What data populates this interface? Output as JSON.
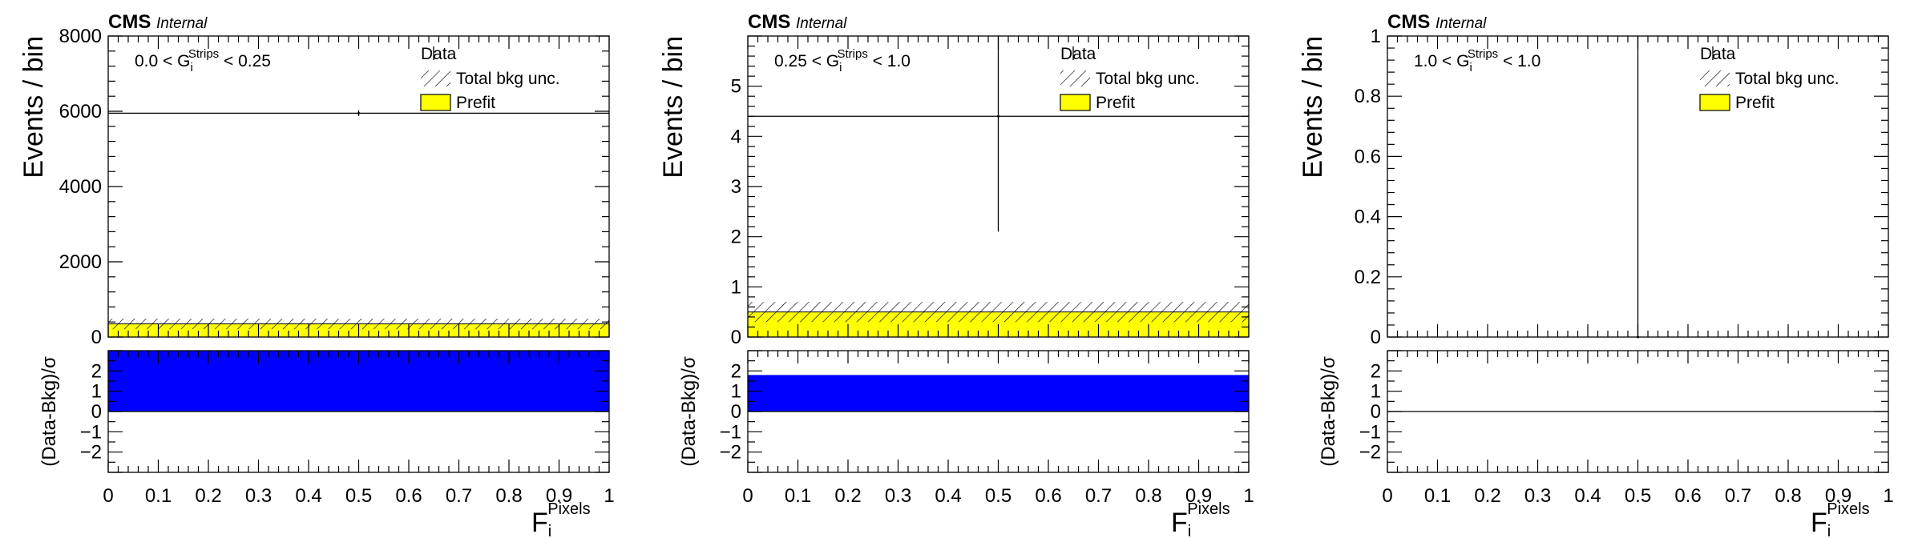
{
  "figure": {
    "experiment": "CMS",
    "status": "Internal",
    "legend": {
      "data": "Data",
      "unc": "Total bkg unc.",
      "prefit": "Prefit"
    },
    "ylabel_top": "Events / bin",
    "ylabel_ratio": "(Data-Bkg)/σ",
    "xlabel_main": "F",
    "xlabel_sub": "i",
    "xlabel_sup": "Pixels"
  },
  "colors": {
    "prefit": "#ffff00",
    "pull": "#0000ff",
    "line": "#000000",
    "frame": "#000000"
  },
  "chart_data": [
    {
      "type": "bar",
      "region_pre": "0.0 < G",
      "region_sub": "i",
      "region_sup": "Strips",
      "region_post": " < 0.25",
      "x_range": [
        0,
        1
      ],
      "ylim": [
        0,
        8000
      ],
      "yticks": [
        "0",
        "2000",
        "4000",
        "6000",
        "8000"
      ],
      "ytick_values": [
        0,
        2000,
        4000,
        6000,
        8000
      ],
      "xticks": [
        "0",
        "0.1",
        "0.2",
        "0.3",
        "0.4",
        "0.5",
        "0.6",
        "0.7",
        "0.8",
        "0.9",
        "1"
      ],
      "bins": [
        [
          0,
          1
        ]
      ],
      "prefit": [
        350
      ],
      "unc_band": [
        [
          210,
          490
        ]
      ],
      "data_x": [
        0.5
      ],
      "data_y": [
        5950
      ],
      "data_err": [
        77
      ],
      "data_xerr": [
        0.5
      ],
      "pull_ylim": [
        -3,
        3
      ],
      "pull_yticks": [
        "−2",
        "−1",
        "0",
        "1",
        "2"
      ],
      "pull_ytick_values": [
        -2,
        -1,
        0,
        1,
        2
      ],
      "pull": [
        3.2
      ]
    },
    {
      "type": "bar",
      "region_pre": "0.25 < G",
      "region_sub": "i",
      "region_sup": "Strips",
      "region_post": " < 1.0",
      "x_range": [
        0,
        1
      ],
      "ylim": [
        0,
        6
      ],
      "yticks": [
        "0",
        "1",
        "2",
        "3",
        "4",
        "5"
      ],
      "ytick_values": [
        0,
        1,
        2,
        3,
        4,
        5
      ],
      "xticks": [
        "0",
        "0.1",
        "0.2",
        "0.3",
        "0.4",
        "0.5",
        "0.6",
        "0.7",
        "0.8",
        "0.9",
        "1"
      ],
      "bins": [
        [
          0,
          1
        ]
      ],
      "prefit": [
        0.5
      ],
      "unc_band": [
        [
          0.3,
          0.7
        ]
      ],
      "data_x": [
        0.5
      ],
      "data_y": [
        4.4
      ],
      "data_err": [
        2.3
      ],
      "data_err_up": [
        3.2
      ],
      "data_err_down": [
        2.3
      ],
      "data_xerr": [
        0.5
      ],
      "pull_ylim": [
        -3,
        3
      ],
      "pull_yticks": [
        "−2",
        "−1",
        "0",
        "1",
        "2"
      ],
      "pull_ytick_values": [
        -2,
        -1,
        0,
        1,
        2
      ],
      "pull": [
        1.8
      ]
    },
    {
      "type": "bar",
      "region_pre": "1.0 < G",
      "region_sub": "i",
      "region_sup": "Strips",
      "region_post": " < 1.0",
      "x_range": [
        0,
        1
      ],
      "ylim": [
        0,
        1
      ],
      "yticks": [
        "0",
        "0.2",
        "0.4",
        "0.6",
        "0.8",
        "1"
      ],
      "ytick_values": [
        0,
        0.2,
        0.4,
        0.6,
        0.8,
        1
      ],
      "xticks": [
        "0",
        "0.1",
        "0.2",
        "0.3",
        "0.4",
        "0.5",
        "0.6",
        "0.7",
        "0.8",
        "0.9",
        "1"
      ],
      "bins": [
        [
          0,
          1
        ]
      ],
      "prefit": [
        0
      ],
      "unc_band": [
        [
          0,
          0
        ]
      ],
      "data_x": [
        0.5
      ],
      "data_y": [
        0
      ],
      "data_err_up": [
        1.1
      ],
      "data_err_down": [
        0
      ],
      "data_xerr": [
        0
      ],
      "pull_ylim": [
        -3,
        3
      ],
      "pull_yticks": [
        "−2",
        "−1",
        "0",
        "1",
        "2"
      ],
      "pull_ytick_values": [
        -2,
        -1,
        0,
        1,
        2
      ],
      "pull": [
        0
      ]
    }
  ]
}
